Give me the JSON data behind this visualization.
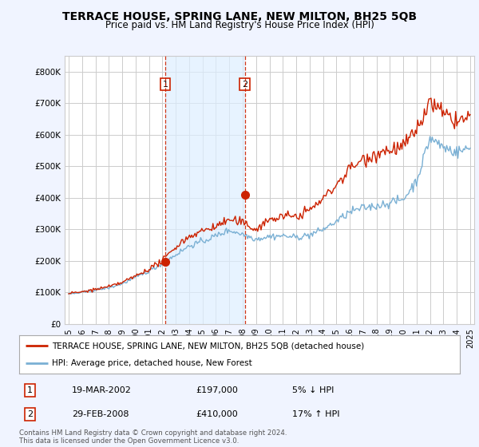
{
  "title": "TERRACE HOUSE, SPRING LANE, NEW MILTON, BH25 5QB",
  "subtitle": "Price paid vs. HM Land Registry's House Price Index (HPI)",
  "legend_line1": "TERRACE HOUSE, SPRING LANE, NEW MILTON, BH25 5QB (detached house)",
  "legend_line2": "HPI: Average price, detached house, New Forest",
  "footnote": "Contains HM Land Registry data © Crown copyright and database right 2024.\nThis data is licensed under the Open Government Licence v3.0.",
  "transaction1_date": "19-MAR-2002",
  "transaction1_price": "£197,000",
  "transaction1_hpi": "5% ↓ HPI",
  "transaction2_date": "29-FEB-2008",
  "transaction2_price": "£410,000",
  "transaction2_hpi": "17% ↑ HPI",
  "transaction1_x": 2002.21,
  "transaction2_x": 2008.16,
  "transaction1_y": 197000,
  "transaction2_y": 410000,
  "vline1_x": 2002.21,
  "vline2_x": 2008.16,
  "red_color": "#cc2200",
  "blue_color": "#7ab0d4",
  "shade_color": "#ddeeff",
  "background_color": "#f0f4ff",
  "plot_bg_color": "#ffffff",
  "grid_color": "#cccccc",
  "ylim": [
    0,
    850000
  ],
  "xlim_start": 1994.7,
  "xlim_end": 2025.3,
  "yticks": [
    0,
    100000,
    200000,
    300000,
    400000,
    500000,
    600000,
    700000,
    800000
  ]
}
